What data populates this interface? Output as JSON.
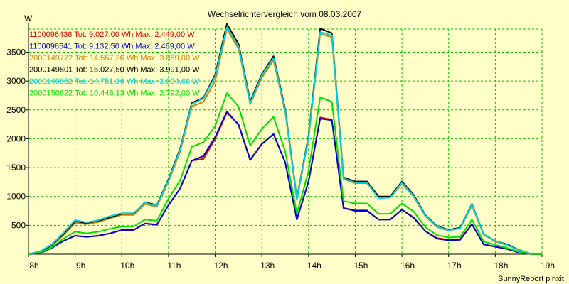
{
  "chart_data": {
    "type": "line",
    "title": "Wechselrichtervergleich vom 08.03.2007",
    "ylabel": "W",
    "xlabel": "",
    "footer": "SunnyReport pinxit",
    "xlim": [
      8,
      19
    ],
    "ylim": [
      0,
      3900
    ],
    "x_ticks": [
      8,
      9,
      10,
      11,
      12,
      13,
      14,
      15,
      16,
      17,
      18,
      19
    ],
    "x_tick_labels": [
      "8h",
      "9h",
      "10h",
      "11h",
      "12h",
      "13h",
      "14h",
      "15h",
      "16h",
      "17h",
      "18h",
      "19h"
    ],
    "y_ticks": [
      500,
      1000,
      1500,
      2000,
      2500,
      3000,
      3500
    ],
    "y_tick_labels": [
      "500",
      "1000",
      "1500",
      "2000",
      "2500",
      "3000",
      "3500"
    ],
    "grid": true,
    "legend_position": "top-left",
    "x": [
      8.0,
      8.25,
      8.5,
      8.75,
      9.0,
      9.25,
      9.5,
      9.75,
      10.0,
      10.25,
      10.5,
      10.75,
      11.0,
      11.25,
      11.5,
      11.75,
      12.0,
      12.25,
      12.5,
      12.75,
      13.0,
      13.25,
      13.5,
      13.75,
      14.0,
      14.25,
      14.5,
      14.75,
      15.0,
      15.25,
      15.5,
      15.75,
      16.0,
      16.25,
      16.5,
      16.75,
      17.0,
      17.25,
      17.5,
      17.75,
      18.0,
      18.25,
      18.5,
      18.75,
      19.0
    ],
    "series": [
      {
        "name": "1100096436",
        "label": "1100096436 Tot: 9.027,00 Wh Max: 2.449,00 W",
        "color": "#e00000",
        "values": [
          0,
          20,
          110,
          230,
          320,
          300,
          320,
          360,
          420,
          420,
          530,
          510,
          850,
          1140,
          1620,
          1650,
          2000,
          2450,
          2250,
          1640,
          1910,
          2080,
          1590,
          600,
          1260,
          2370,
          2330,
          800,
          760,
          760,
          600,
          600,
          770,
          640,
          400,
          280,
          250,
          260,
          520,
          170,
          130,
          90,
          30,
          5,
          0
        ]
      },
      {
        "name": "1100096541",
        "label": "1100096541 Tot: 9.132,50 Wh Max: 2.469,00 W",
        "color": "#0000d0",
        "values": [
          0,
          20,
          110,
          230,
          320,
          300,
          320,
          360,
          420,
          420,
          530,
          510,
          850,
          1140,
          1620,
          1700,
          2030,
          2470,
          2240,
          1630,
          1910,
          2080,
          1590,
          600,
          1260,
          2350,
          2320,
          800,
          750,
          750,
          600,
          600,
          770,
          630,
          400,
          270,
          240,
          250,
          520,
          170,
          130,
          90,
          30,
          5,
          0
        ]
      },
      {
        "name": "2000149772",
        "label": "2000149772 Tot: 14.557,36 Wh Max: 3.889,00 W",
        "color": "#d08000",
        "values": [
          0,
          40,
          150,
          330,
          540,
          520,
          560,
          620,
          680,
          680,
          870,
          820,
          1260,
          1780,
          2560,
          2640,
          3000,
          3900,
          3560,
          2600,
          3060,
          3360,
          2460,
          950,
          2000,
          3820,
          3760,
          1300,
          1230,
          1230,
          980,
          980,
          1220,
          1000,
          660,
          470,
          410,
          450,
          840,
          340,
          220,
          160,
          70,
          10,
          0
        ]
      },
      {
        "name": "2000149801",
        "label": "2000149801 Tot: 15.027,50 Wh Max: 3.991,00 W",
        "color": "#000000",
        "values": [
          0,
          40,
          160,
          350,
          570,
          540,
          580,
          640,
          700,
          700,
          900,
          850,
          1300,
          1830,
          2620,
          2710,
          3110,
          3990,
          3640,
          2650,
          3120,
          3430,
          2510,
          970,
          2050,
          3910,
          3830,
          1330,
          1260,
          1260,
          1000,
          1000,
          1260,
          1030,
          680,
          490,
          420,
          460,
          870,
          350,
          230,
          170,
          75,
          10,
          0
        ]
      },
      {
        "name": "2000149852",
        "label": "2000149852 Tot: 14.751,36 Wh Max: 3.924,00 W",
        "color": "#00d0e0",
        "values": [
          0,
          50,
          170,
          370,
          590,
          550,
          590,
          660,
          710,
          710,
          890,
          840,
          1280,
          1810,
          2600,
          2700,
          3080,
          3930,
          3600,
          2620,
          3100,
          3400,
          2480,
          960,
          2020,
          3850,
          3790,
          1310,
          1240,
          1240,
          970,
          980,
          1240,
          1010,
          670,
          480,
          410,
          450,
          860,
          350,
          230,
          160,
          70,
          10,
          0
        ]
      },
      {
        "name": "2000150622",
        "label": "2000150622 Tot: 10.446,13 Wh Max: 2.792,00 W",
        "color": "#00e000",
        "values": [
          0,
          30,
          120,
          270,
          390,
          360,
          390,
          440,
          480,
          480,
          600,
          580,
          960,
          1280,
          1860,
          1940,
          2220,
          2790,
          2560,
          1880,
          2170,
          2380,
          1780,
          700,
          1440,
          2720,
          2640,
          920,
          880,
          880,
          700,
          700,
          880,
          740,
          470,
          330,
          290,
          300,
          600,
          220,
          160,
          110,
          40,
          5,
          0
        ]
      }
    ]
  }
}
